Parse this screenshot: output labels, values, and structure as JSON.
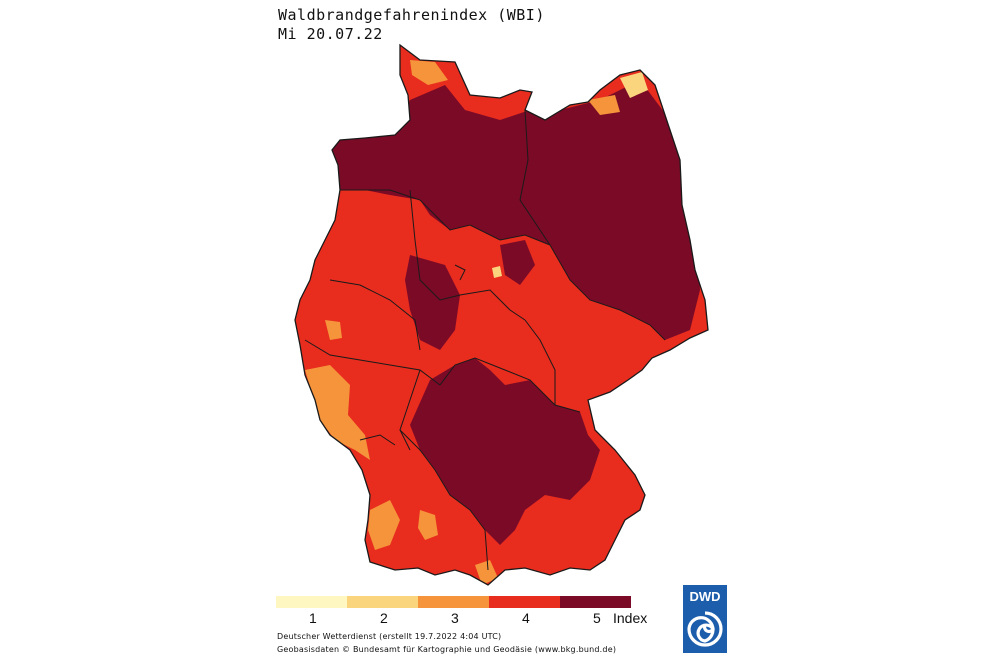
{
  "title": "Waldbrandgefahrenindex (WBI)",
  "date": "Mi 20.07.22",
  "legend": {
    "items": [
      {
        "label": "1",
        "color": "#fff7c2"
      },
      {
        "label": "2",
        "color": "#fbd47e"
      },
      {
        "label": "3",
        "color": "#f5943a"
      },
      {
        "label": "4",
        "color": "#e82c1e"
      },
      {
        "label": "5",
        "color": "#7b0a26"
      }
    ],
    "unit": "Index"
  },
  "credits": {
    "line1": "Deutscher Wetterdienst (erstellt 19.7.2022 4:04 UTC)",
    "line2": "Geobasisdaten © Bundesamt für Kartographie und Geodäsie (www.bkg.bund.de)"
  },
  "logo": {
    "text": "DWD"
  },
  "colors": {
    "border": "#1a1a1a",
    "logo_bg": "#1c5eab"
  }
}
